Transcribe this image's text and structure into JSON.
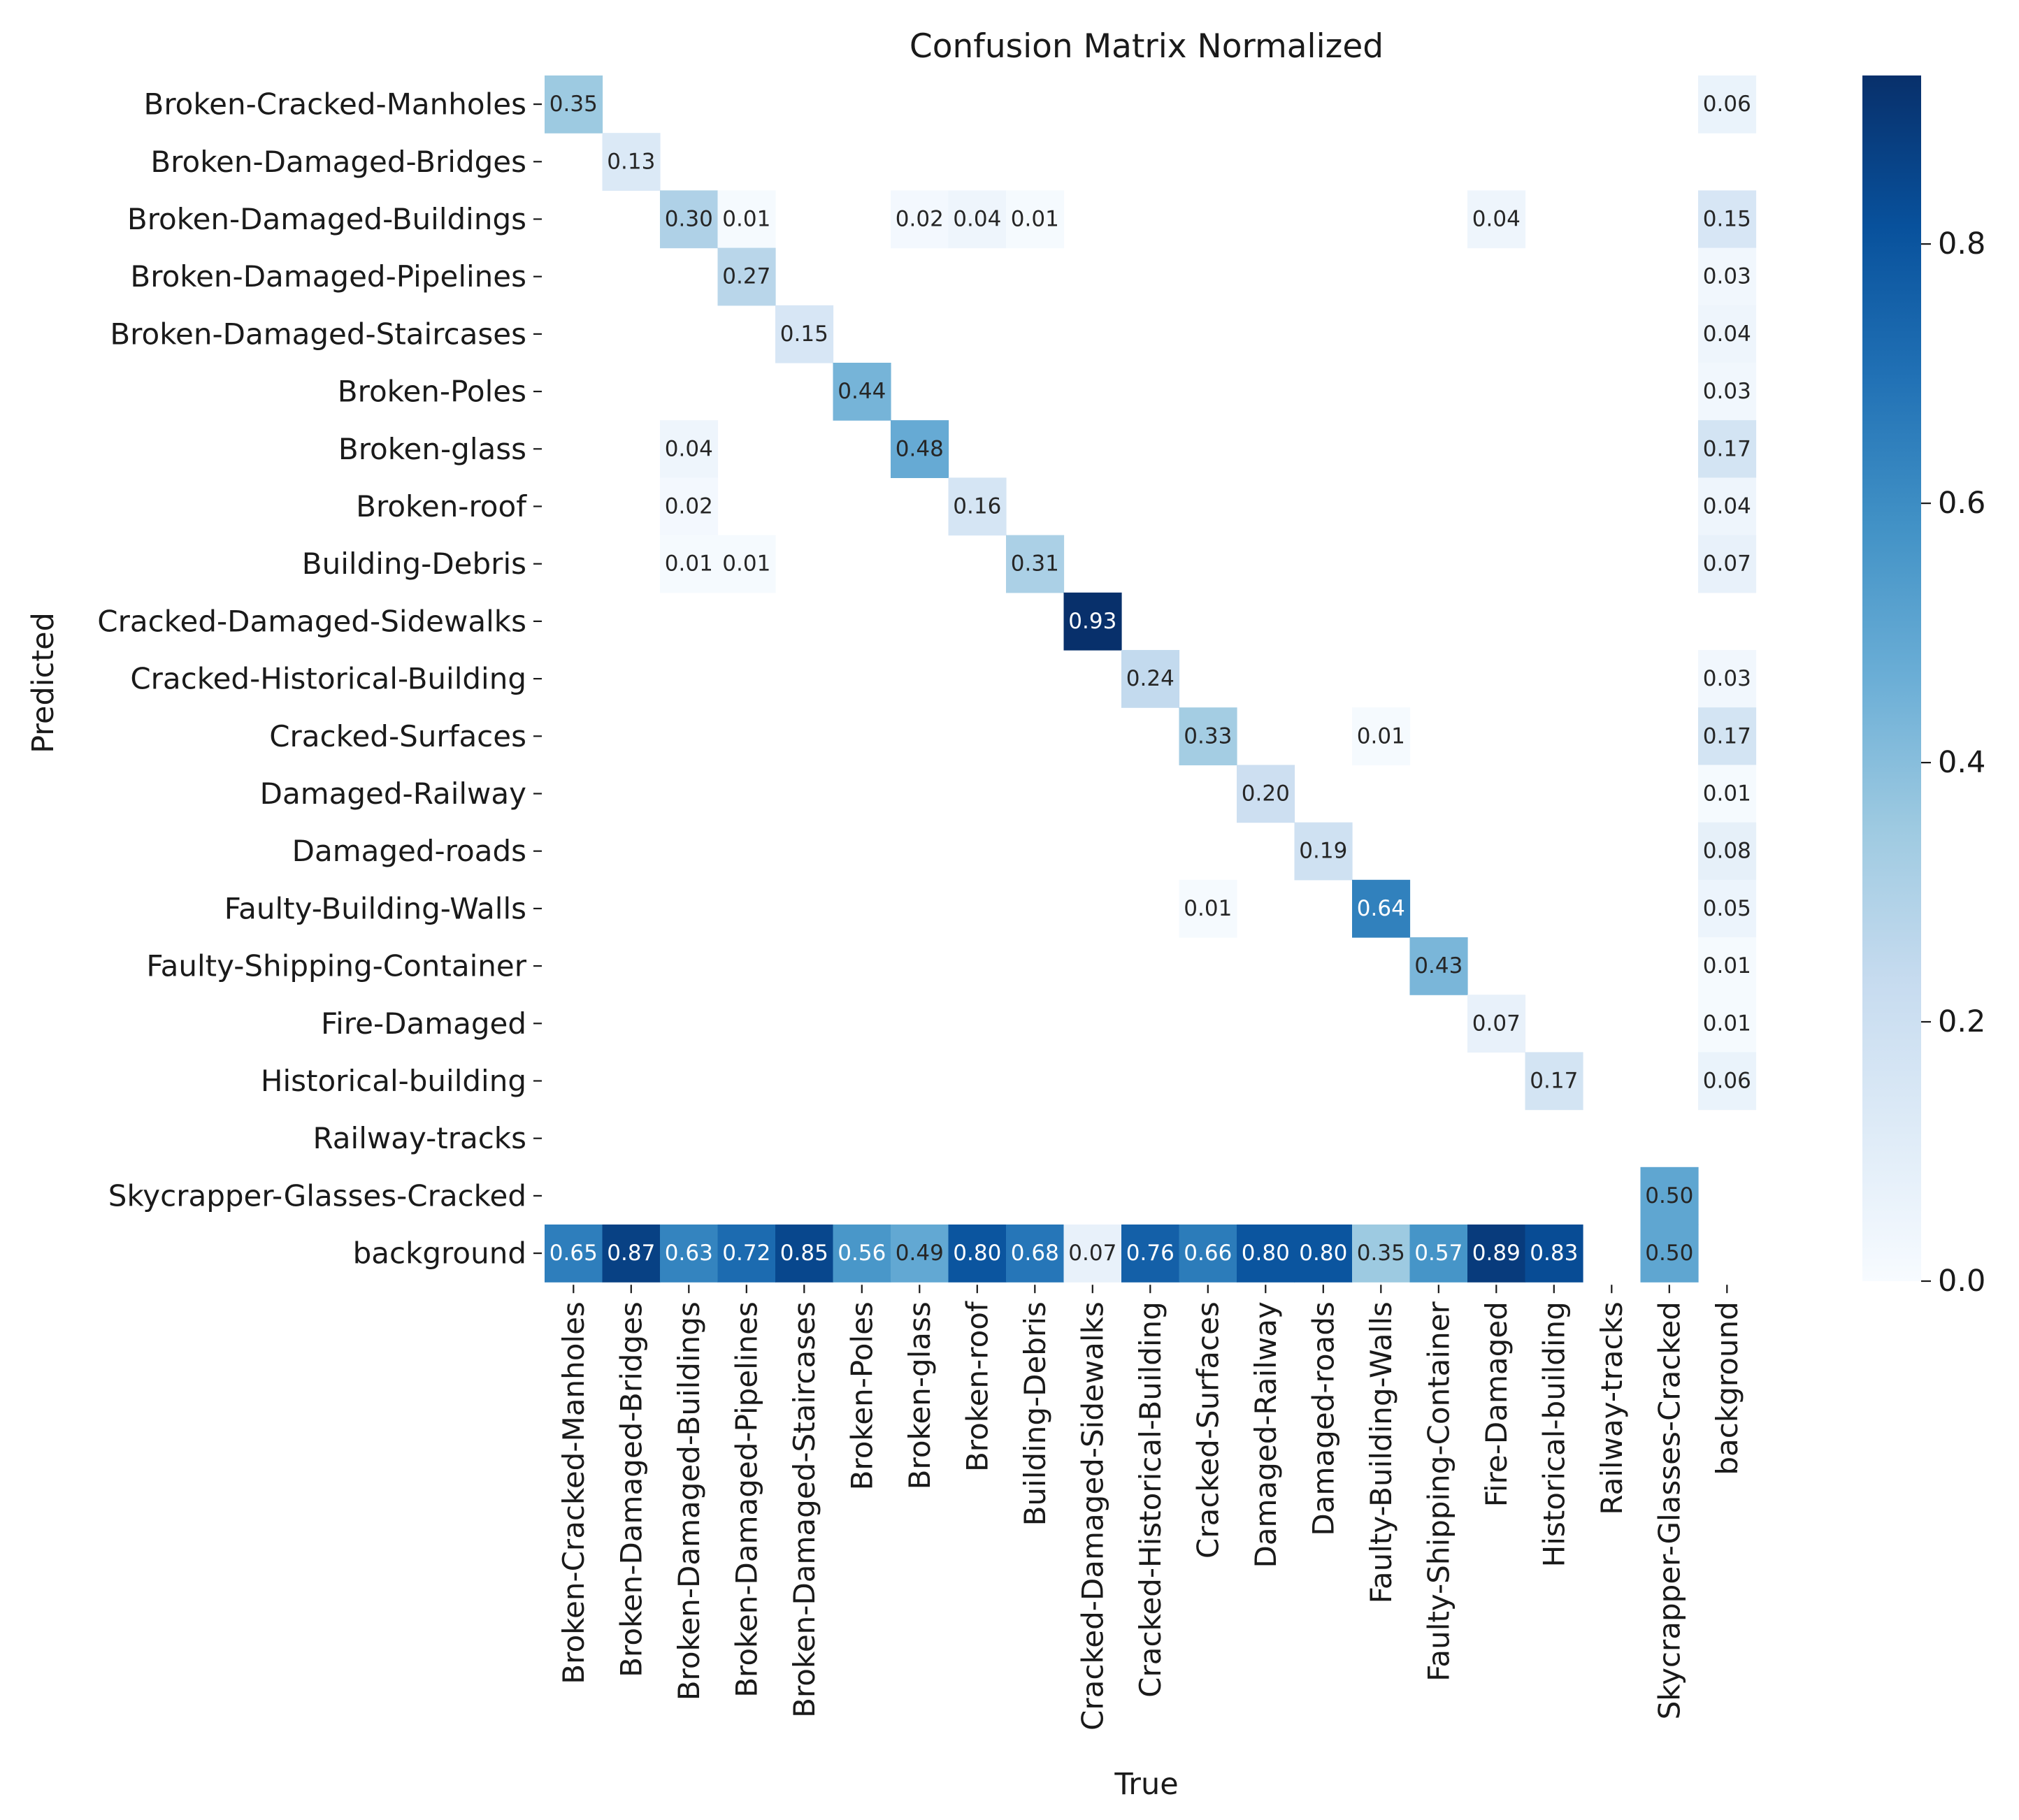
{
  "chart_data": {
    "type": "heatmap",
    "title": "Confusion Matrix Normalized",
    "xlabel": "True",
    "ylabel": "Predicted",
    "cmap": "Blues",
    "vmin": 0,
    "vmax": 0.93,
    "colorbar_ticks": [
      "0.0",
      "0.2",
      "0.4",
      "0.6",
      "0.8"
    ],
    "x_labels": [
      "Broken-Cracked-Manholes",
      "Broken-Damaged-Bridges",
      "Broken-Damaged-Buildings",
      "Broken-Damaged-Pipelines",
      "Broken-Damaged-Staircases",
      "Broken-Poles",
      "Broken-glass",
      "Broken-roof",
      "Building-Debris",
      "Cracked-Damaged-Sidewalks",
      "Cracked-Historical-Building",
      "Cracked-Surfaces",
      "Damaged-Railway",
      "Damaged-roads",
      "Faulty-Building-Walls",
      "Faulty-Shipping-Container",
      "Fire-Damaged",
      "Historical-building",
      "Railway-tracks",
      "Skycrapper-Glasses-Cracked",
      "background"
    ],
    "y_labels": [
      "Broken-Cracked-Manholes",
      "Broken-Damaged-Bridges",
      "Broken-Damaged-Buildings",
      "Broken-Damaged-Pipelines",
      "Broken-Damaged-Staircases",
      "Broken-Poles",
      "Broken-glass",
      "Broken-roof",
      "Building-Debris",
      "Cracked-Damaged-Sidewalks",
      "Cracked-Historical-Building",
      "Cracked-Surfaces",
      "Damaged-Railway",
      "Damaged-roads",
      "Faulty-Building-Walls",
      "Faulty-Shipping-Container",
      "Fire-Damaged",
      "Historical-building",
      "Railway-tracks",
      "Skycrapper-Glasses-Cracked",
      "background"
    ],
    "cells": [
      {
        "row": 0,
        "col": 0,
        "value": "0.35"
      },
      {
        "row": 0,
        "col": 20,
        "value": "0.06"
      },
      {
        "row": 1,
        "col": 1,
        "value": "0.13"
      },
      {
        "row": 2,
        "col": 2,
        "value": "0.30"
      },
      {
        "row": 2,
        "col": 3,
        "value": "0.01"
      },
      {
        "row": 2,
        "col": 6,
        "value": "0.02"
      },
      {
        "row": 2,
        "col": 7,
        "value": "0.04"
      },
      {
        "row": 2,
        "col": 8,
        "value": "0.01"
      },
      {
        "row": 2,
        "col": 16,
        "value": "0.04"
      },
      {
        "row": 2,
        "col": 20,
        "value": "0.15"
      },
      {
        "row": 3,
        "col": 3,
        "value": "0.27"
      },
      {
        "row": 3,
        "col": 20,
        "value": "0.03"
      },
      {
        "row": 4,
        "col": 4,
        "value": "0.15"
      },
      {
        "row": 4,
        "col": 20,
        "value": "0.04"
      },
      {
        "row": 5,
        "col": 5,
        "value": "0.44"
      },
      {
        "row": 5,
        "col": 20,
        "value": "0.03"
      },
      {
        "row": 6,
        "col": 2,
        "value": "0.04"
      },
      {
        "row": 6,
        "col": 6,
        "value": "0.48"
      },
      {
        "row": 6,
        "col": 20,
        "value": "0.17"
      },
      {
        "row": 7,
        "col": 2,
        "value": "0.02"
      },
      {
        "row": 7,
        "col": 7,
        "value": "0.16"
      },
      {
        "row": 7,
        "col": 20,
        "value": "0.04"
      },
      {
        "row": 8,
        "col": 2,
        "value": "0.01"
      },
      {
        "row": 8,
        "col": 3,
        "value": "0.01"
      },
      {
        "row": 8,
        "col": 8,
        "value": "0.31"
      },
      {
        "row": 8,
        "col": 20,
        "value": "0.07"
      },
      {
        "row": 9,
        "col": 9,
        "value": "0.93"
      },
      {
        "row": 10,
        "col": 10,
        "value": "0.24"
      },
      {
        "row": 10,
        "col": 20,
        "value": "0.03"
      },
      {
        "row": 11,
        "col": 11,
        "value": "0.33"
      },
      {
        "row": 11,
        "col": 14,
        "value": "0.01"
      },
      {
        "row": 11,
        "col": 20,
        "value": "0.17"
      },
      {
        "row": 12,
        "col": 12,
        "value": "0.20"
      },
      {
        "row": 12,
        "col": 20,
        "value": "0.01"
      },
      {
        "row": 13,
        "col": 13,
        "value": "0.19"
      },
      {
        "row": 13,
        "col": 20,
        "value": "0.08"
      },
      {
        "row": 14,
        "col": 11,
        "value": "0.01"
      },
      {
        "row": 14,
        "col": 14,
        "value": "0.64"
      },
      {
        "row": 14,
        "col": 20,
        "value": "0.05"
      },
      {
        "row": 15,
        "col": 15,
        "value": "0.43"
      },
      {
        "row": 15,
        "col": 20,
        "value": "0.01"
      },
      {
        "row": 16,
        "col": 16,
        "value": "0.07"
      },
      {
        "row": 16,
        "col": 20,
        "value": "0.01"
      },
      {
        "row": 17,
        "col": 17,
        "value": "0.17"
      },
      {
        "row": 17,
        "col": 20,
        "value": "0.06"
      },
      {
        "row": 19,
        "col": 19,
        "value": "0.50"
      },
      {
        "row": 20,
        "col": 0,
        "value": "0.65"
      },
      {
        "row": 20,
        "col": 1,
        "value": "0.87"
      },
      {
        "row": 20,
        "col": 2,
        "value": "0.63"
      },
      {
        "row": 20,
        "col": 3,
        "value": "0.72"
      },
      {
        "row": 20,
        "col": 4,
        "value": "0.85"
      },
      {
        "row": 20,
        "col": 5,
        "value": "0.56"
      },
      {
        "row": 20,
        "col": 6,
        "value": "0.49"
      },
      {
        "row": 20,
        "col": 7,
        "value": "0.80"
      },
      {
        "row": 20,
        "col": 8,
        "value": "0.68"
      },
      {
        "row": 20,
        "col": 9,
        "value": "0.07"
      },
      {
        "row": 20,
        "col": 10,
        "value": "0.76"
      },
      {
        "row": 20,
        "col": 11,
        "value": "0.66"
      },
      {
        "row": 20,
        "col": 12,
        "value": "0.80"
      },
      {
        "row": 20,
        "col": 13,
        "value": "0.80"
      },
      {
        "row": 20,
        "col": 14,
        "value": "0.35"
      },
      {
        "row": 20,
        "col": 15,
        "value": "0.57"
      },
      {
        "row": 20,
        "col": 16,
        "value": "0.89"
      },
      {
        "row": 20,
        "col": 17,
        "value": "0.83"
      },
      {
        "row": 20,
        "col": 19,
        "value": "0.50"
      }
    ]
  }
}
